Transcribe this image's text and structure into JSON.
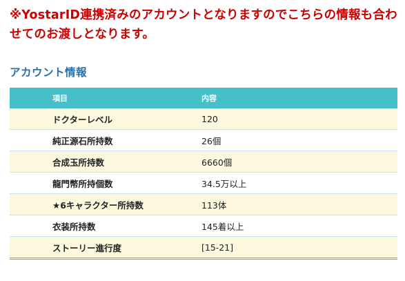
{
  "notice": "※YostarID連携済みのアカウントとなりますのでこちらの情報も合わせてのお渡しとなります。",
  "section": {
    "title": "アカウント情報"
  },
  "table": {
    "headers": {
      "item": "項目",
      "value": "内容"
    },
    "rows": [
      {
        "item": "ドクターレベル",
        "value": "120"
      },
      {
        "item": "純正源石所持数",
        "value": "26個"
      },
      {
        "item": "合成玉所持数",
        "value": "6660個"
      },
      {
        "item": "龍門幣所持個数",
        "value": "34.5万以上"
      },
      {
        "item": "★6キャラクター所持数",
        "value": "113体"
      },
      {
        "item": "衣装所持数",
        "value": "145着以上"
      },
      {
        "item": "ストーリー進行度",
        "value": "[15-21]"
      }
    ]
  },
  "colors": {
    "notice": "#cc0000",
    "section_title": "#2a6fa8",
    "header_bg": "#47bfc8",
    "row_odd_bg": "#fbf8de",
    "row_even_bg": "#ffffff"
  }
}
